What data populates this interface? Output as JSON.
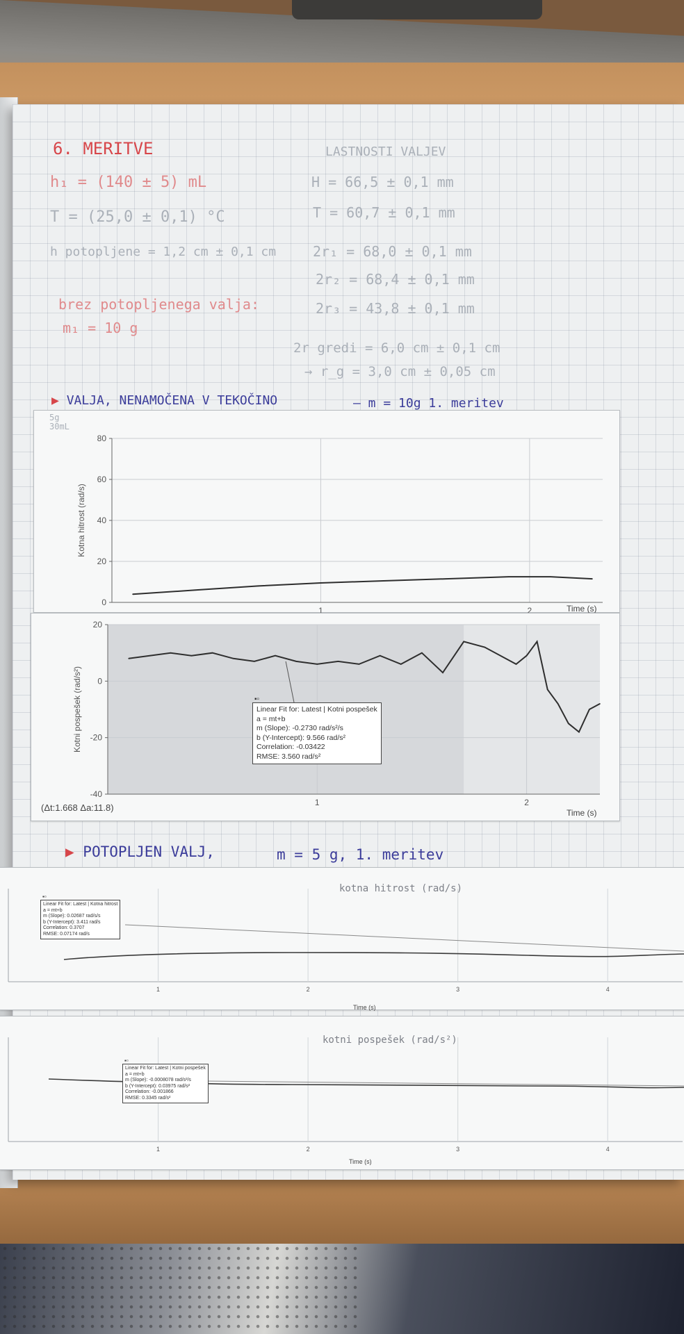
{
  "handwriting": {
    "left": {
      "heading": "6. MERITVE",
      "h1": "h₁ = (140 ± 5) mL",
      "temperature": "T = (25,0 ± 0,1) °C",
      "h_potopljene": "h potopljene = 1,2 cm ± 0,1 cm",
      "brez_label": "brez potopljenega valja:",
      "m1": "m₁ = 10 g"
    },
    "right": {
      "heading": "LASTNOSTI VALJEV",
      "H": "H = 66,5 ± 0,1 mm",
      "T": "T = 60,7 ± 0,1 mm",
      "d1": "2r₁ = 68,0 ± 0,1 mm",
      "d2": "2r₂ = 68,4 ± 0,1 mm",
      "d3": "2r₃ = 43,8 ± 0,1 mm",
      "d_gredi": "2r gredi = 6,0 cm ± 0,1 cm",
      "r_g": "→ r_g = 3,0 cm ± 0,05 cm"
    },
    "section1_title": "VALJA, NENAMOČENA V TEKOČINO",
    "section1_mass": "– m = 10g  1. meritev",
    "section2_title": "POTOPLJEN VALJ,",
    "section2_mass": "m = 5 g,  1. meritev",
    "graph3_caption": "kotna hitrost (rad/s)",
    "graph4_caption": "kotni pospešek (rad/s²)"
  },
  "graph1": {
    "ylabel": "Kotna hitrost (rad/s)",
    "xlabel": "Time (s)",
    "corner_note": "5g 30mL",
    "yticks": [
      "80",
      "60",
      "40",
      "20",
      "0"
    ],
    "xticks": [
      "1",
      "2"
    ]
  },
  "graph2": {
    "ylabel": "Kotni pospešek (rad/s²)",
    "xlabel": "Time (s)",
    "yticks": [
      "20",
      "0",
      "-20",
      "-40"
    ],
    "xticks": [
      "1",
      "2"
    ],
    "readout": "(Δt:1.668 Δa:11.8)",
    "fit": {
      "title": "Linear Fit for: Latest | Kotni pospešek",
      "eq": "a = mt+b",
      "slope": "m (Slope): -0.2730 rad/s²/s",
      "intercept": "b (Y-Intercept): 9.566 rad/s²",
      "corr": "Correlation: -0.03422",
      "rmse": "RMSE: 3.560 rad/s²"
    }
  },
  "graph3": {
    "xlabel": "Time (s)",
    "xticks": [
      "1",
      "2",
      "3",
      "4"
    ],
    "fit": {
      "title": "Linear Fit for: Latest | Kotna hitrost",
      "eq": "a = mt+b",
      "slope": "m (Slope): 0.02687 rad/s/s",
      "intercept": "b (Y-Intercept): 3.411 rad/s",
      "corr": "Correlation: 0.3707",
      "rmse": "RMSE: 0.07174 rad/s"
    }
  },
  "graph4": {
    "xlabel": "Time (s)",
    "xticks": [
      "1",
      "2",
      "3",
      "4"
    ],
    "fit": {
      "title": "Linear Fit for: Latest | Kotni pospešek",
      "eq": "a = mt+b",
      "slope": "m (Slope): -0.0008078 rad/s²/s",
      "intercept": "b (Y-Intercept): 0.03975 rad/s²",
      "corr": "Correlation: -0.001866",
      "rmse": "RMSE: 0.3345 rad/s²"
    }
  },
  "chart_data": [
    {
      "type": "line",
      "ylabel": "Kotna hitrost (rad/s)",
      "xlabel": "Time (s)",
      "ylim": [
        0,
        80
      ],
      "xlim": [
        0,
        2.35
      ],
      "x": [
        0.1,
        0.4,
        0.7,
        1.0,
        1.3,
        1.6,
        1.9,
        2.1,
        2.3
      ],
      "y": [
        4,
        6,
        8,
        9.5,
        10.5,
        11.5,
        12.5,
        12.5,
        11.5
      ]
    },
    {
      "type": "line",
      "ylabel": "Kotni pospešek (rad/s²)",
      "xlabel": "Time (s)",
      "ylim": [
        -40,
        20
      ],
      "xlim": [
        0,
        2.35
      ],
      "x": [
        0.1,
        0.2,
        0.3,
        0.4,
        0.5,
        0.6,
        0.7,
        0.8,
        0.9,
        1.0,
        1.1,
        1.2,
        1.3,
        1.4,
        1.5,
        1.6,
        1.7,
        1.8,
        1.9,
        1.95,
        2.0,
        2.05,
        2.1,
        2.15,
        2.2,
        2.25,
        2.3,
        2.35
      ],
      "y": [
        8,
        9,
        10,
        9,
        10,
        8,
        7,
        9,
        7,
        6,
        7,
        6,
        9,
        6,
        10,
        3,
        14,
        12,
        8,
        6,
        9,
        14,
        -3,
        -8,
        -15,
        -18,
        -10,
        -8
      ]
    }
  ]
}
